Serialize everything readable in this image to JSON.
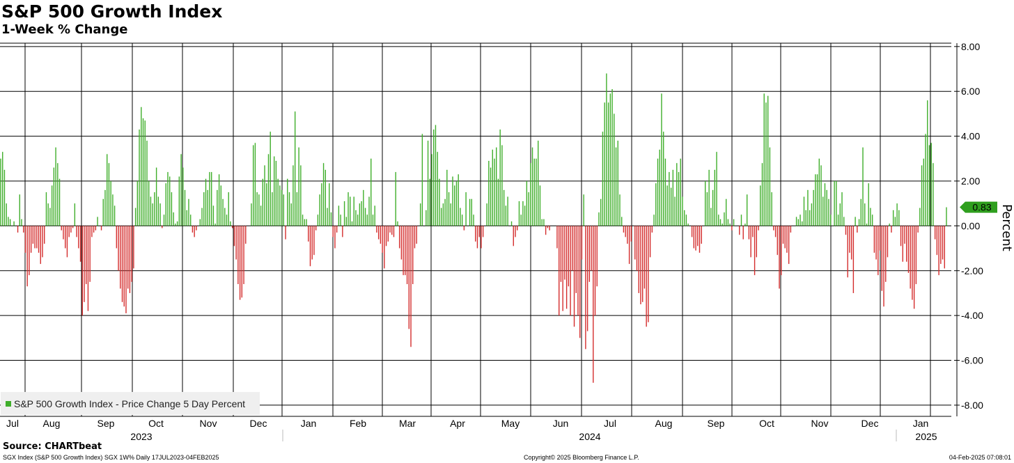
{
  "title": "S&P 500 Growth Index",
  "subtitle": "1-Week % Change",
  "source": "Source: CHARTbeat",
  "footer": {
    "left": "SGX Index (S&P 500 Growth Index) SGX 1W% Daily 17JUL2023-04FEB2025",
    "center": "Copyright© 2025 Bloomberg Finance L.P.",
    "right": "04-Feb-2025 07:08:01"
  },
  "colors": {
    "positive": "#3fae2a",
    "negative": "#d42c2c",
    "grid": "#000000"
  },
  "chart_data": {
    "type": "bar",
    "title": "S&P 500 Growth Index",
    "subtitle": "1-Week % Change",
    "ylabel": "Percent",
    "ylim": [
      -8.5,
      8.15
    ],
    "yticks": [
      "8.00",
      "6.00",
      "4.00",
      "2.00",
      "0.00",
      "-2.00",
      "-4.00",
      "-6.00",
      "-8.00"
    ],
    "ytick_values": [
      8,
      6,
      4,
      2,
      0,
      -2,
      -4,
      -6,
      -8
    ],
    "grid": true,
    "legend": {
      "position": "bottom-left",
      "label": "S&P 500 Growth Index - Price Change 5 Day Percent"
    },
    "last_value_label": "0.83",
    "last_value": 0.83,
    "months": [
      "Jul",
      "Aug",
      "Sep",
      "Oct",
      "Nov",
      "Dec",
      "Jan",
      "Feb",
      "Mar",
      "Apr",
      "May",
      "Jun",
      "Jul",
      "Aug",
      "Sep",
      "Oct",
      "Nov",
      "Dec",
      "Jan"
    ],
    "years": [
      "2023",
      "2024",
      "2025"
    ],
    "x_start": "2023-07-17",
    "x_end": "2025-02-04",
    "series": [
      {
        "name": "S&P 500 Growth Index - Price Change 5 Day Percent",
        "values": [
          3.0,
          3.3,
          2.5,
          1.0,
          0.4,
          0.3,
          0.0,
          0.2,
          0.0,
          -0.3,
          1.4,
          0.3,
          -0.3,
          -1.2,
          -2.7,
          -2.2,
          -1.2,
          -0.8,
          -1.0,
          -1.0,
          -1.2,
          -1.7,
          -1.4,
          -0.8,
          1.5,
          1.0,
          0.8,
          1.8,
          2.6,
          3.5,
          2.8,
          2.1,
          -0.2,
          -0.6,
          -1.0,
          -1.4,
          -0.5,
          -0.3,
          -0.1,
          1.0,
          -0.5,
          -1.0,
          -1.6,
          -4.0,
          -3.4,
          -2.6,
          -3.8,
          -2.5,
          -0.5,
          -0.3,
          -0.2,
          0.4,
          0.0,
          -0.2,
          1.2,
          1.6,
          3.2,
          2.8,
          2.0,
          1.4,
          0.9,
          -1.0,
          -2.0,
          -2.8,
          -3.4,
          -3.6,
          -3.9,
          -2.8,
          -3.0,
          -2.5,
          -1.9,
          0.8,
          2.0,
          4.3,
          5.3,
          4.8,
          4.7,
          3.8,
          2.0,
          1.3,
          1.0,
          1.5,
          2.6,
          1.3,
          1.0,
          -0.1,
          0.5,
          1.9,
          2.4,
          2.2,
          1.5,
          0.6,
          0.1,
          0.2,
          2.2,
          3.2,
          2.6,
          1.6,
          0.7,
          1.2,
          0.5,
          -0.3,
          -0.5,
          -0.2,
          0.0,
          0.3,
          0.8,
          1.5,
          2.1,
          1.6,
          2.4,
          2.4,
          0.9,
          0.1,
          1.6,
          2.3,
          1.8,
          1.2,
          0.8,
          0.5,
          1.5,
          0.2,
          -0.1,
          -0.9,
          -1.5,
          -2.6,
          -3.3,
          -3.2,
          -2.6,
          -0.8,
          0.0,
          0.0,
          1.0,
          3.6,
          3.7,
          1.5,
          1.4,
          0.9,
          2.1,
          2.7,
          1.9,
          3.2,
          4.2,
          1.5,
          3.1,
          2.9,
          2.1,
          1.8,
          1.6,
          1.4,
          -0.6,
          2.1,
          1.5,
          1.0,
          2.7,
          5.1,
          1.5,
          3.5,
          2.7,
          0.5,
          0.3,
          0.3,
          -0.7,
          -1.8,
          -1.5,
          -1.3,
          -0.2,
          0.5,
          1.4,
          1.9,
          2.8,
          2.5,
          0.8,
          1.9,
          0.6,
          -0.5,
          -1.0,
          -0.3,
          0.9,
          0.5,
          -0.5,
          1.1,
          0.4,
          1.5,
          1.3,
          0.2,
          1.3,
          0.7,
          0.5,
          1.0,
          1.1,
          1.6,
          0.8,
          0.5,
          1.3,
          3.0,
          0.5,
          0.9,
          -0.3,
          -0.6,
          -0.8,
          -1.2,
          -1.9,
          -0.9,
          -0.7,
          -0.3,
          -0.4,
          -0.5,
          2.4,
          0.2,
          -1.0,
          -1.5,
          -2.2,
          -2.2,
          -2.6,
          -4.6,
          -5.4,
          -2.6,
          -1.0,
          -0.8,
          0.0,
          1.0,
          4.1,
          0.0,
          0.7,
          3.8,
          2.1,
          3.2,
          4.3,
          4.5,
          3.3,
          2.1,
          0.8,
          1.0,
          1.2,
          2.5,
          1.5,
          1.0,
          2.2,
          1.8,
          2.0,
          2.3,
          0.8,
          0.5,
          -0.2,
          1.5,
          0.0,
          1.2,
          1.2,
          0.5,
          -0.7,
          -1.0,
          -0.5,
          -1.0,
          -0.5,
          0.0,
          1.0,
          2.9,
          2.6,
          3.4,
          3.0,
          3.5,
          2.1,
          4.3,
          3.6,
          1.6,
          0.9,
          1.3,
          0.0,
          0.2,
          -0.9,
          -0.5,
          -0.2,
          1.1,
          0.5,
          1.1,
          0.9,
          2.0,
          1.5,
          2.8,
          3.5,
          3.0,
          3.0,
          3.8,
          1.8,
          0.3,
          0.3,
          -0.4,
          -0.1,
          -0.2,
          0.0,
          0.0,
          0.0,
          -1.0,
          -4.0,
          -2.5,
          -3.8,
          -2.4,
          -3.7,
          -2.7,
          -4.0,
          -2.0,
          -4.5,
          -3.0,
          -4.0,
          -5.0,
          -1.5,
          1.4,
          -5.5,
          -4.7,
          -2.5,
          -2.0,
          -7.0,
          -4.0,
          -2.7,
          0.6,
          1.2,
          4.2,
          5.5,
          6.8,
          5.5,
          5.9,
          6.1,
          5.0,
          3.5,
          3.8,
          1.4,
          0.4,
          -0.3,
          -0.5,
          -0.8,
          -1.7,
          -0.7,
          0.0,
          -1.5,
          -2.0,
          -3.0,
          -3.5,
          -3.4,
          -2.8,
          -4.5,
          -4.3,
          -1.4,
          -0.3,
          0.5,
          1.9,
          3.0,
          3.4,
          5.9,
          4.2,
          3.0,
          1.8,
          2.4,
          1.7,
          2.5,
          1.3,
          2.8,
          2.4,
          3.0,
          1.3,
          0.7,
          0.5,
          0.1,
          0.0,
          -0.5,
          -1.0,
          -1.1,
          -0.9,
          -1.2,
          -0.8,
          0.0,
          2.0,
          1.5,
          2.5,
          0.8,
          1.6,
          2.5,
          3.3,
          0.5,
          0.3,
          0.1,
          0.6,
          1.2,
          0.3,
          0.1,
          -0.2,
          0.3,
          0.0,
          0.0,
          -0.4,
          0.5,
          -0.6,
          0.1,
          1.4,
          -0.6,
          -1.4,
          -0.5,
          -2.2,
          -1.4,
          -0.2,
          1.8,
          2.8,
          5.9,
          5.5,
          5.8,
          3.5,
          1.5,
          -0.2,
          -0.5,
          -1.3,
          -2.8,
          -2.2,
          -0.8,
          -1.0,
          -1.2,
          -1.7,
          -0.3,
          0.0,
          0.0,
          0.4,
          0.3,
          0.5,
          0.2,
          1.3,
          0.7,
          1.6,
          0.7,
          1.0,
          1.6,
          2.3,
          2.3,
          3.0,
          2.7,
          1.3,
          1.9,
          1.6,
          1.2,
          0.5,
          0.0,
          2.0,
          2.0,
          0.5,
          1.0,
          1.5,
          0.4,
          -0.4,
          -2.3,
          -1.2,
          -1.5,
          -3.0,
          0.4,
          -0.3,
          0.3,
          1.2,
          3.5,
          1.0,
          0.1,
          1.9,
          0.8,
          0.5,
          -1.2,
          -1.5,
          -2.2,
          -1.1,
          -2.9,
          -3.6,
          -2.5,
          -1.4,
          0.1,
          -0.3,
          0.7,
          0.4,
          1.0,
          0.7,
          -0.9,
          -1.6,
          -0.8,
          -1.6,
          -2.1,
          -2.8,
          -3.3,
          -3.7,
          -2.6,
          -0.3,
          0.8,
          2.7,
          3.0,
          4.1,
          5.6,
          3.6,
          3.7,
          2.8,
          -0.6,
          -1.3,
          -2.2,
          -1.7,
          -1.5,
          -1.9,
          0.83
        ]
      }
    ]
  }
}
